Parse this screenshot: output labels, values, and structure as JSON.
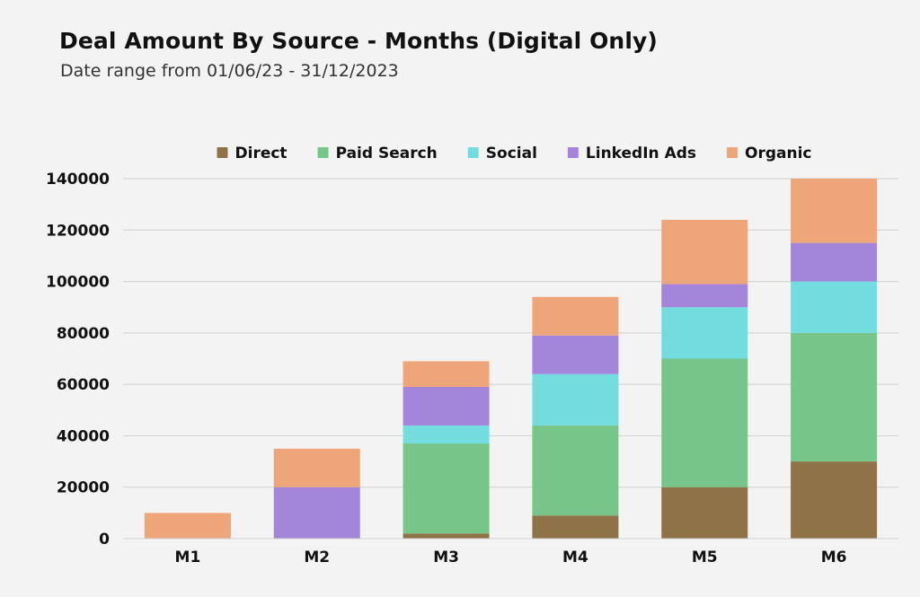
{
  "title": "Deal Amount By Source - Months (Digital Only)",
  "subtitle": "Date range from 01/06/23 - 31/12/2023",
  "chart_data": {
    "type": "bar",
    "stacked": true,
    "categories": [
      "M1",
      "M2",
      "M3",
      "M4",
      "M5",
      "M6"
    ],
    "series": [
      {
        "name": "Direct",
        "color": "#8f7248",
        "values": [
          0,
          0,
          2000,
          9000,
          20000,
          30000
        ]
      },
      {
        "name": "Paid Search",
        "color": "#77c589",
        "values": [
          0,
          0,
          35000,
          35000,
          50000,
          50000
        ]
      },
      {
        "name": "Social",
        "color": "#72dcdf",
        "values": [
          0,
          0,
          7000,
          20000,
          20000,
          20000
        ]
      },
      {
        "name": "LinkedIn Ads",
        "color": "#a385d9",
        "values": [
          0,
          20000,
          15000,
          15000,
          9000,
          15000
        ]
      },
      {
        "name": "Organic",
        "color": "#eea57a",
        "values": [
          10000,
          15000,
          10000,
          15000,
          25000,
          25000
        ]
      }
    ],
    "ylim": [
      0,
      140000
    ],
    "yticks": [
      0,
      20000,
      40000,
      60000,
      80000,
      100000,
      120000,
      140000
    ],
    "legend_position": "top-center",
    "grid": true
  }
}
